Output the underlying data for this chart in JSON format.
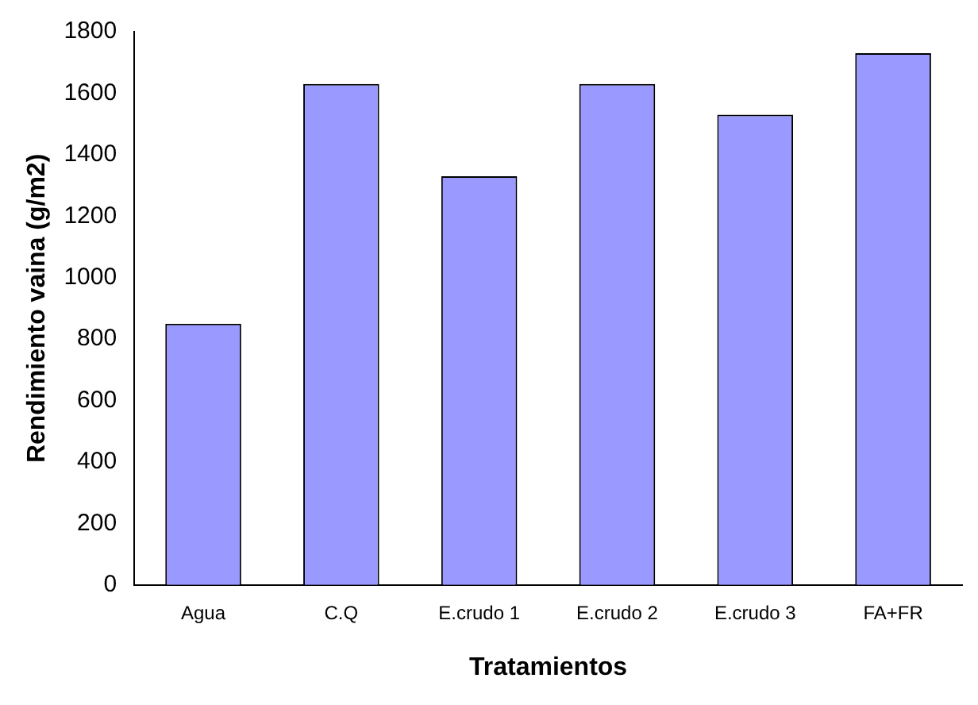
{
  "chart_data": {
    "type": "bar",
    "xlabel": "Tratamientos",
    "ylabel": "Rendimiento vaina (g/m2)",
    "categories": [
      "Agua",
      "C.Q",
      "E.crudo 1",
      "E.crudo 2",
      "E.crudo 3",
      "FA+FR"
    ],
    "values": [
      850,
      1630,
      1330,
      1630,
      1530,
      1730
    ],
    "color": "#9999ff",
    "ylim": [
      0,
      1800
    ],
    "yticks": [
      0,
      200,
      400,
      600,
      800,
      1000,
      1200,
      1400,
      1600,
      1800
    ],
    "grid": false,
    "legend": false
  }
}
